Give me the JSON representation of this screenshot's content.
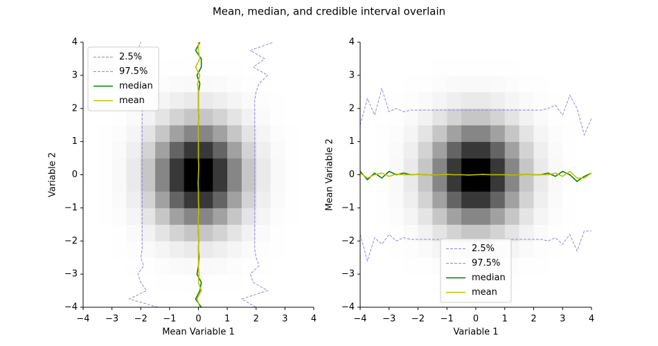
{
  "title": "Mean, median, and credible interval overlain",
  "chart_data": [
    {
      "type": "histogram2d",
      "xlabel": "Mean Variable 1",
      "ylabel": "Variable 2",
      "legend": "upper left",
      "xlim": [
        -4,
        4
      ],
      "ylim": [
        -4,
        4
      ],
      "xticks": [
        {
          "value": -4,
          "label": "−4"
        },
        {
          "value": -3,
          "label": "−3"
        },
        {
          "value": -2,
          "label": "−2"
        },
        {
          "value": -1,
          "label": "−1"
        },
        0,
        1,
        2,
        3,
        4
      ],
      "yticks": [
        {
          "value": -4,
          "label": "−4"
        },
        {
          "value": -3,
          "label": "−3"
        },
        {
          "value": -2,
          "label": "−2"
        },
        {
          "value": -1,
          "label": "−1"
        },
        0,
        1,
        2,
        3,
        4
      ],
      "bins": [
        -4,
        -3.5,
        -3,
        -2.5,
        -2,
        -1.5,
        -1,
        -0.5,
        0,
        0.5,
        1,
        1.5,
        2,
        2.5,
        3,
        3.5,
        4
      ],
      "counts": [
        [
          0,
          0,
          0,
          0,
          0,
          0,
          1,
          1,
          1,
          1,
          0,
          0,
          0,
          0,
          0,
          0
        ],
        [
          0,
          0,
          0,
          0,
          1,
          2,
          4,
          5,
          5,
          4,
          2,
          1,
          0,
          0,
          0,
          0
        ],
        [
          0,
          0,
          1,
          2,
          5,
          11,
          17,
          22,
          22,
          17,
          11,
          5,
          2,
          1,
          0,
          0
        ],
        [
          0,
          0,
          2,
          6,
          17,
          37,
          60,
          78,
          78,
          60,
          37,
          17,
          6,
          2,
          0,
          0
        ],
        [
          0,
          1,
          5,
          17,
          47,
          99,
          163,
          209,
          209,
          163,
          99,
          47,
          17,
          5,
          1,
          0
        ],
        [
          0,
          2,
          11,
          37,
          99,
          210,
          346,
          444,
          444,
          346,
          210,
          99,
          37,
          11,
          2,
          0
        ],
        [
          1,
          4,
          17,
          60,
          163,
          346,
          570,
          732,
          732,
          570,
          346,
          163,
          60,
          17,
          4,
          1
        ],
        [
          1,
          5,
          22,
          78,
          209,
          444,
          732,
          939,
          939,
          732,
          444,
          209,
          78,
          22,
          5,
          1
        ],
        [
          1,
          5,
          22,
          78,
          209,
          444,
          732,
          939,
          939,
          732,
          444,
          209,
          78,
          22,
          5,
          1
        ],
        [
          1,
          4,
          17,
          60,
          163,
          346,
          570,
          732,
          732,
          570,
          346,
          163,
          60,
          17,
          4,
          1
        ],
        [
          0,
          2,
          11,
          37,
          99,
          210,
          346,
          444,
          444,
          346,
          210,
          99,
          37,
          11,
          2,
          0
        ],
        [
          0,
          1,
          5,
          17,
          47,
          99,
          163,
          209,
          209,
          163,
          99,
          47,
          17,
          5,
          1,
          0
        ],
        [
          0,
          0,
          2,
          6,
          17,
          37,
          60,
          78,
          78,
          60,
          37,
          17,
          6,
          2,
          0,
          0
        ],
        [
          0,
          0,
          1,
          2,
          5,
          11,
          17,
          22,
          22,
          17,
          11,
          5,
          2,
          1,
          0,
          0
        ],
        [
          0,
          0,
          0,
          0,
          1,
          2,
          4,
          5,
          5,
          4,
          2,
          1,
          0,
          0,
          0,
          0
        ],
        [
          0,
          0,
          0,
          0,
          0,
          0,
          1,
          1,
          1,
          1,
          0,
          0,
          0,
          0,
          0,
          0
        ]
      ],
      "y": [
        -4,
        -3.75,
        -3.5,
        -3.25,
        -3,
        -2.75,
        -2.5,
        -2.25,
        -2,
        -1.75,
        -1.5,
        -1.25,
        -1,
        -0.75,
        -0.5,
        -0.25,
        0,
        0.25,
        0.5,
        0.75,
        1,
        1.25,
        1.5,
        1.75,
        2,
        2.25,
        2.5,
        2.75,
        3,
        3.25,
        3.5,
        3.75,
        4
      ],
      "series": [
        {
          "name": "2.5%",
          "color": "#9386d8",
          "linestyle": "dashed",
          "values": [
            -1.4,
            -2.4,
            -1.8,
            -2.0,
            -2.1,
            -1.9,
            -2.0,
            -1.95,
            -1.95,
            -1.95,
            -1.95,
            -1.95,
            -1.95,
            -1.95,
            -1.95,
            -1.95,
            -1.95,
            -1.95,
            -1.95,
            -1.95,
            -1.95,
            -1.95,
            -1.95,
            -1.95,
            -1.95,
            -1.95,
            -2.0,
            -1.95,
            -2.0,
            -1.9,
            -2.05,
            -2.1,
            -2.0
          ]
        },
        {
          "name": "97.5%",
          "color": "#9386d8",
          "linestyle": "dashed",
          "values": [
            2.0,
            1.5,
            2.4,
            1.9,
            1.8,
            2.1,
            2.0,
            1.95,
            1.95,
            1.95,
            1.95,
            1.95,
            1.95,
            1.95,
            1.95,
            1.95,
            1.95,
            1.95,
            1.95,
            1.95,
            1.95,
            1.95,
            1.95,
            1.95,
            1.95,
            1.95,
            2.0,
            2.1,
            2.4,
            1.9,
            2.3,
            1.8,
            2.6
          ]
        },
        {
          "name": "median",
          "color": "#008000",
          "linestyle": "solid",
          "values": [
            0.1,
            -0.1,
            0.05,
            0.1,
            -0.05,
            0,
            0.02,
            0,
            0.01,
            0,
            -0.01,
            0,
            0.01,
            0,
            0,
            -0.01,
            0,
            0.01,
            0,
            0,
            0,
            -0.01,
            0,
            0.01,
            0,
            0,
            0,
            0.05,
            -0.05,
            0.1,
            0.1,
            -0.1,
            0.05
          ]
        },
        {
          "name": "mean",
          "color": "#bfbf00",
          "linestyle": "solid",
          "values": [
            0.05,
            -0.05,
            0.1,
            0,
            0.02,
            0,
            0,
            0,
            0.01,
            0,
            -0.01,
            0,
            0.01,
            0,
            0,
            -0.01,
            0,
            0.01,
            0,
            0,
            0,
            -0.01,
            0,
            0.01,
            0,
            0,
            0,
            -0.03,
            0.05,
            -0.1,
            0.05,
            0,
            0
          ]
        }
      ]
    },
    {
      "type": "histogram2d",
      "xlabel": "Variable 1",
      "ylabel": "Mean Variable 2",
      "legend": "lower center",
      "xlim": [
        -4,
        4
      ],
      "ylim": [
        -4,
        4
      ],
      "xticks": [
        {
          "value": -4,
          "label": "−4"
        },
        {
          "value": -3,
          "label": "−3"
        },
        {
          "value": -2,
          "label": "−2"
        },
        {
          "value": -1,
          "label": "−1"
        },
        0,
        1,
        2,
        3,
        4
      ],
      "yticks": [
        {
          "value": -4,
          "label": "−4"
        },
        {
          "value": -3,
          "label": "−3"
        },
        {
          "value": -2,
          "label": "−2"
        },
        {
          "value": -1,
          "label": "−1"
        },
        0,
        1,
        2,
        3,
        4
      ],
      "bins": [
        -4,
        -3.5,
        -3,
        -2.5,
        -2,
        -1.5,
        -1,
        -0.5,
        0,
        0.5,
        1,
        1.5,
        2,
        2.5,
        3,
        3.5,
        4
      ],
      "counts": [
        [
          0,
          0,
          0,
          0,
          0,
          0,
          1,
          1,
          1,
          1,
          0,
          0,
          0,
          0,
          0,
          0
        ],
        [
          0,
          0,
          0,
          0,
          1,
          2,
          4,
          5,
          5,
          4,
          2,
          1,
          0,
          0,
          0,
          0
        ],
        [
          0,
          0,
          1,
          2,
          5,
          11,
          17,
          22,
          22,
          17,
          11,
          5,
          2,
          1,
          0,
          0
        ],
        [
          0,
          0,
          2,
          6,
          17,
          37,
          60,
          78,
          78,
          60,
          37,
          17,
          6,
          2,
          0,
          0
        ],
        [
          0,
          1,
          5,
          17,
          47,
          99,
          163,
          209,
          209,
          163,
          99,
          47,
          17,
          5,
          1,
          0
        ],
        [
          0,
          2,
          11,
          37,
          99,
          210,
          346,
          444,
          444,
          346,
          210,
          99,
          37,
          11,
          2,
          0
        ],
        [
          1,
          4,
          17,
          60,
          163,
          346,
          570,
          732,
          732,
          570,
          346,
          163,
          60,
          17,
          4,
          1
        ],
        [
          1,
          5,
          22,
          78,
          209,
          444,
          732,
          939,
          939,
          732,
          444,
          209,
          78,
          22,
          5,
          1
        ],
        [
          1,
          5,
          22,
          78,
          209,
          444,
          732,
          939,
          939,
          732,
          444,
          209,
          78,
          22,
          5,
          1
        ],
        [
          1,
          4,
          17,
          60,
          163,
          346,
          570,
          732,
          732,
          570,
          346,
          163,
          60,
          17,
          4,
          1
        ],
        [
          0,
          2,
          11,
          37,
          99,
          210,
          346,
          444,
          444,
          346,
          210,
          99,
          37,
          11,
          2,
          0
        ],
        [
          0,
          1,
          5,
          17,
          47,
          99,
          163,
          209,
          209,
          163,
          99,
          47,
          17,
          5,
          1,
          0
        ],
        [
          0,
          0,
          2,
          6,
          17,
          37,
          60,
          78,
          78,
          60,
          37,
          17,
          6,
          2,
          0,
          0
        ],
        [
          0,
          0,
          1,
          2,
          5,
          11,
          17,
          22,
          22,
          17,
          11,
          5,
          2,
          1,
          0,
          0
        ],
        [
          0,
          0,
          0,
          0,
          1,
          2,
          4,
          5,
          5,
          4,
          2,
          1,
          0,
          0,
          0,
          0
        ],
        [
          0,
          0,
          0,
          0,
          0,
          0,
          1,
          1,
          1,
          1,
          0,
          0,
          0,
          0,
          0,
          0
        ]
      ],
      "x": [
        -4,
        -3.75,
        -3.5,
        -3.25,
        -3,
        -2.75,
        -2.5,
        -2.25,
        -2,
        -1.75,
        -1.5,
        -1.25,
        -1,
        -0.75,
        -0.5,
        -0.25,
        0,
        0.25,
        0.5,
        0.75,
        1,
        1.25,
        1.5,
        1.75,
        2,
        2.25,
        2.5,
        2.75,
        3,
        3.25,
        3.5,
        3.75,
        4
      ],
      "series": [
        {
          "name": "2.5%",
          "color": "#9386d8",
          "linestyle": "dashed",
          "values": [
            -1.8,
            -2.6,
            -1.9,
            -2.1,
            -1.8,
            -2.0,
            -1.9,
            -1.95,
            -1.95,
            -1.95,
            -1.95,
            -1.95,
            -1.95,
            -1.95,
            -1.95,
            -1.95,
            -1.95,
            -1.95,
            -1.95,
            -1.95,
            -1.95,
            -1.95,
            -1.95,
            -1.95,
            -1.95,
            -1.95,
            -2.0,
            -1.9,
            -2.1,
            -1.8,
            -2.3,
            -1.7,
            -1.7
          ]
        },
        {
          "name": "97.5%",
          "color": "#9386d8",
          "linestyle": "dashed",
          "values": [
            1.5,
            2.3,
            1.8,
            2.6,
            1.9,
            2.0,
            1.9,
            1.95,
            1.95,
            1.95,
            1.95,
            1.95,
            1.95,
            1.95,
            1.95,
            1.95,
            1.95,
            1.95,
            1.95,
            1.95,
            1.95,
            1.95,
            1.95,
            1.95,
            1.95,
            1.95,
            2.0,
            2.1,
            1.8,
            2.4,
            2.0,
            1.2,
            1.7
          ]
        },
        {
          "name": "median",
          "color": "#008000",
          "linestyle": "solid",
          "values": [
            0.1,
            -0.15,
            0.05,
            -0.1,
            0.1,
            0,
            0.05,
            0,
            0.01,
            0,
            -0.01,
            0,
            0.01,
            0,
            0,
            -0.01,
            0,
            0.01,
            0,
            0,
            0,
            -0.01,
            0,
            0.01,
            0,
            0,
            0.05,
            -0.05,
            0.1,
            0,
            -0.2,
            -0.05,
            0.05
          ]
        },
        {
          "name": "mean",
          "color": "#bfbf00",
          "linestyle": "solid",
          "values": [
            0.05,
            -0.1,
            0,
            0.05,
            -0.05,
            0.02,
            0,
            0,
            0.01,
            0,
            -0.01,
            0,
            0.01,
            0,
            0,
            -0.01,
            0,
            0.01,
            0,
            0,
            0,
            -0.01,
            0,
            0.01,
            0,
            0,
            0,
            0.05,
            -0.05,
            0.1,
            -0.1,
            -0.1,
            0.05
          ]
        }
      ]
    }
  ]
}
